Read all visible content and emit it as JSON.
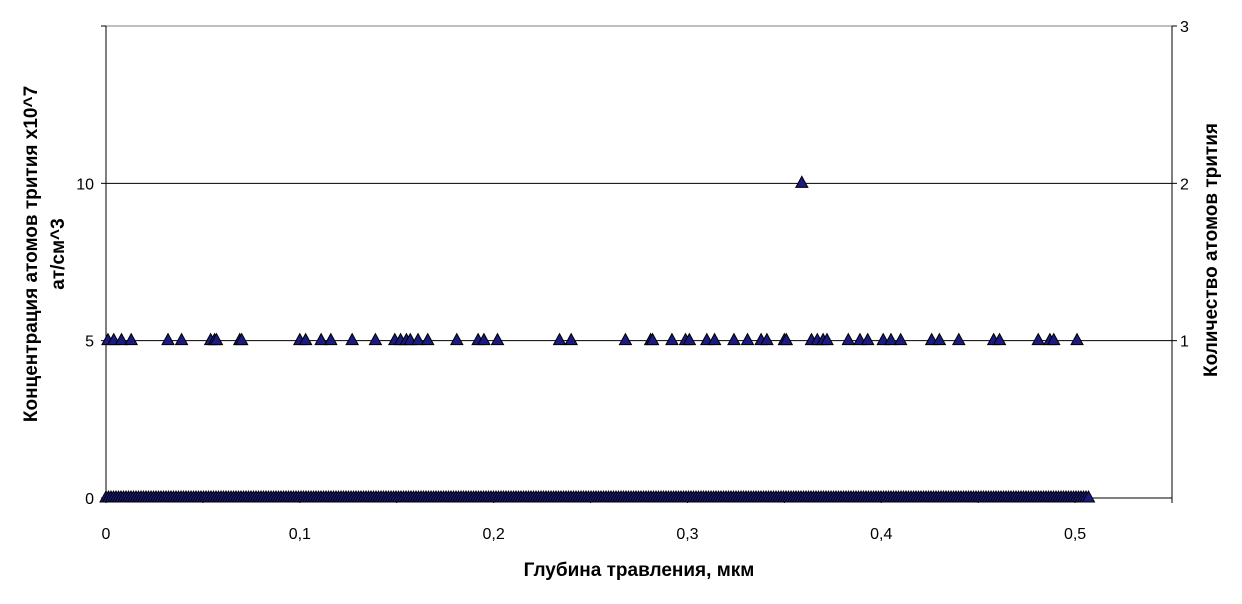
{
  "chart_data": {
    "type": "scatter",
    "title": "",
    "xlabel": "Глубина травления, мкм",
    "ylabel_left_line1": "Концентрация атомов трития х10^7",
    "ylabel_left_line2": "ат/см^3",
    "ylabel_right": "Количество атомов трития",
    "xlim": [
      0,
      0.55
    ],
    "ylim_left": [
      0,
      15
    ],
    "ylim_right": [
      0,
      3
    ],
    "x_ticks": [
      "0",
      "0,1",
      "0,2",
      "0,3",
      "0,4",
      "0,5"
    ],
    "y_left_ticks": [
      "0",
      "5",
      "10"
    ],
    "y_right_ticks": [
      "1",
      "2",
      "3"
    ],
    "grid": "horizontal",
    "legend": "none",
    "marker": "triangle",
    "colors": {
      "marker_fill": "#1a1a80",
      "marker_stroke": "#000000",
      "grid": "#000000",
      "plot_border": "#808080"
    },
    "series": [
      {
        "axis": "left",
        "points_level_5": [
          0.001,
          0.004,
          0.008,
          0.013,
          0.032,
          0.039,
          0.054,
          0.056,
          0.057,
          0.069,
          0.07,
          0.1,
          0.103,
          0.111,
          0.116,
          0.127,
          0.139,
          0.149,
          0.152,
          0.155,
          0.157,
          0.161,
          0.166,
          0.181,
          0.192,
          0.195,
          0.202,
          0.234,
          0.24,
          0.268,
          0.281,
          0.282,
          0.292,
          0.299,
          0.301,
          0.31,
          0.314,
          0.324,
          0.331,
          0.338,
          0.341,
          0.35,
          0.351,
          0.364,
          0.367,
          0.37,
          0.372,
          0.383,
          0.389,
          0.393,
          0.401,
          0.405,
          0.41,
          0.426,
          0.43,
          0.44,
          0.458,
          0.461,
          0.481,
          0.487,
          0.489,
          0.501
        ],
        "points_level_10": [
          0.359
        ],
        "points_level_0_range": [
          0,
          0.507
        ]
      }
    ]
  }
}
